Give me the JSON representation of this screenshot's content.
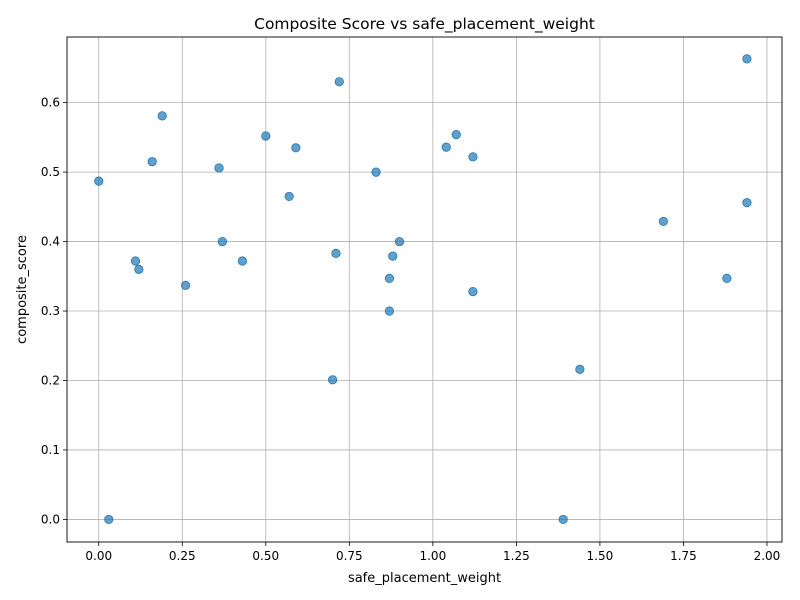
{
  "chart_data": {
    "type": "scatter",
    "title": "Composite Score vs safe_placement_weight",
    "xlabel": "safe_placement_weight",
    "ylabel": "composite_score",
    "xlim": [
      -0.095,
      2.045
    ],
    "ylim": [
      -0.0325,
      0.6945
    ],
    "xticks": [
      0.0,
      0.25,
      0.5,
      0.75,
      1.0,
      1.25,
      1.5,
      1.75,
      2.0
    ],
    "xtick_labels": [
      "0.00",
      "0.25",
      "0.50",
      "0.75",
      "1.00",
      "1.25",
      "1.50",
      "1.75",
      "2.00"
    ],
    "yticks": [
      0.0,
      0.1,
      0.2,
      0.3,
      0.4,
      0.5,
      0.6
    ],
    "ytick_labels": [
      "0.0",
      "0.1",
      "0.2",
      "0.3",
      "0.4",
      "0.5",
      "0.6"
    ],
    "grid": true,
    "color": "#1f77b4",
    "points": [
      {
        "x": 0.0,
        "y": 0.487
      },
      {
        "x": 0.03,
        "y": 0.0
      },
      {
        "x": 0.11,
        "y": 0.372
      },
      {
        "x": 0.12,
        "y": 0.36
      },
      {
        "x": 0.16,
        "y": 0.515
      },
      {
        "x": 0.19,
        "y": 0.581
      },
      {
        "x": 0.26,
        "y": 0.337
      },
      {
        "x": 0.36,
        "y": 0.506
      },
      {
        "x": 0.37,
        "y": 0.4
      },
      {
        "x": 0.43,
        "y": 0.372
      },
      {
        "x": 0.5,
        "y": 0.552
      },
      {
        "x": 0.57,
        "y": 0.465
      },
      {
        "x": 0.59,
        "y": 0.535
      },
      {
        "x": 0.7,
        "y": 0.201
      },
      {
        "x": 0.71,
        "y": 0.383
      },
      {
        "x": 0.72,
        "y": 0.63
      },
      {
        "x": 0.83,
        "y": 0.5
      },
      {
        "x": 0.87,
        "y": 0.3
      },
      {
        "x": 0.87,
        "y": 0.347
      },
      {
        "x": 0.88,
        "y": 0.379
      },
      {
        "x": 0.9,
        "y": 0.4
      },
      {
        "x": 1.04,
        "y": 0.536
      },
      {
        "x": 1.07,
        "y": 0.554
      },
      {
        "x": 1.12,
        "y": 0.522
      },
      {
        "x": 1.12,
        "y": 0.328
      },
      {
        "x": 1.39,
        "y": 0.0
      },
      {
        "x": 1.44,
        "y": 0.216
      },
      {
        "x": 1.69,
        "y": 0.429
      },
      {
        "x": 1.88,
        "y": 0.347
      },
      {
        "x": 1.94,
        "y": 0.663
      },
      {
        "x": 1.94,
        "y": 0.456
      }
    ]
  }
}
